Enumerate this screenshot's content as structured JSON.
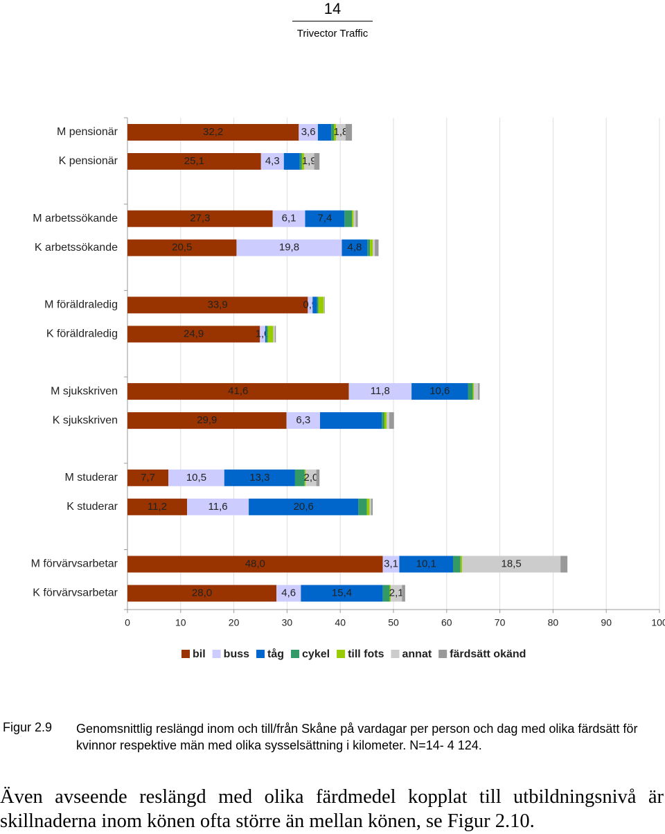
{
  "header": {
    "page_number": "14",
    "company": "Trivector Traffic"
  },
  "chart_data": {
    "type": "stacked-barh",
    "categories": [
      "M pensionär",
      "K pensionär",
      "M arbetssökande",
      "K arbetssökande",
      "M föräldraledig",
      "K föräldraledig",
      "M sjukskriven",
      "K sjukskriven",
      "M studerar",
      "K studerar",
      "M förvärvsarbetar",
      "K förvärvsarbetar"
    ],
    "series": [
      {
        "name": "bil",
        "color": "#993300",
        "values": [
          32.2,
          25.1,
          27.3,
          20.5,
          33.9,
          24.9,
          41.6,
          29.9,
          7.7,
          11.2,
          48.0,
          28.0
        ],
        "value_labels": [
          "32,2",
          "25,1",
          "27,3",
          "20,5",
          "33,9",
          "24,9",
          "41,6",
          "29,9",
          "7,7",
          "11,2",
          "48,0",
          "28,0"
        ]
      },
      {
        "name": "buss",
        "color": "#ccccff",
        "values": [
          3.6,
          4.3,
          6.1,
          19.8,
          0.9,
          1.0,
          11.8,
          6.3,
          10.5,
          11.6,
          3.1,
          4.6
        ],
        "value_labels": [
          "3,6",
          "4,3",
          "6,1",
          "19,8",
          "0,9",
          "1,0",
          "11,8",
          "6,3",
          "10,5",
          "11,6",
          "3,1",
          "4,6"
        ]
      },
      {
        "name": "tåg",
        "color": "#0066cc",
        "values": [
          2.5,
          3.0,
          7.4,
          4.8,
          0.8,
          0.2,
          10.6,
          11.6,
          13.3,
          20.6,
          10.1,
          15.4
        ],
        "value_labels": [
          null,
          null,
          "7,4",
          "4,8",
          null,
          null,
          "10,6",
          null,
          "13,3",
          "20,6",
          "10,1",
          "15,4"
        ]
      },
      {
        "name": "cykel",
        "color": "#339966",
        "values": [
          0.5,
          0.4,
          1.4,
          0.5,
          0.3,
          0.3,
          0.9,
          0.5,
          1.8,
          1.6,
          1.4,
          1.3
        ]
      },
      {
        "name": "till fots",
        "color": "#99cc00",
        "values": [
          0.4,
          0.4,
          0.3,
          0.5,
          1.0,
          1.0,
          0.2,
          0.4,
          0.2,
          0.5,
          0.3,
          0.2
        ]
      },
      {
        "name": "annat",
        "color": "#cccccc",
        "values": [
          1.8,
          1.9,
          0.4,
          0.4,
          0.1,
          0.3,
          0.8,
          0.5,
          2.0,
          0.3,
          18.5,
          2.1
        ],
        "value_labels": [
          "1,8",
          "1,9",
          null,
          null,
          null,
          null,
          null,
          null,
          "2,0",
          null,
          "18,5",
          "2,1"
        ]
      },
      {
        "name": "färdsätt okänd",
        "color": "#999999",
        "values": [
          1.2,
          1.0,
          0.4,
          0.7,
          0.1,
          0.2,
          0.3,
          0.9,
          0.6,
          0.3,
          1.3,
          0.6
        ]
      }
    ],
    "xlim": [
      0,
      100
    ],
    "xticks": [
      0,
      10,
      20,
      30,
      40,
      50,
      60,
      70,
      80,
      90,
      100
    ],
    "grid": true
  },
  "caption": {
    "label": "Figur 2.9",
    "text": "Genomsnittlig reslängd inom och till/från Skåne på vardagar per person och dag med olika färdsätt för kvinnor respektive män med olika sysselsättning i kilometer. N=14- 4 124."
  },
  "body": "Även avseende reslängd med olika färdmedel kopplat till utbildningsnivå är skillnaderna inom könen ofta större än mellan könen, se Figur 2.10."
}
